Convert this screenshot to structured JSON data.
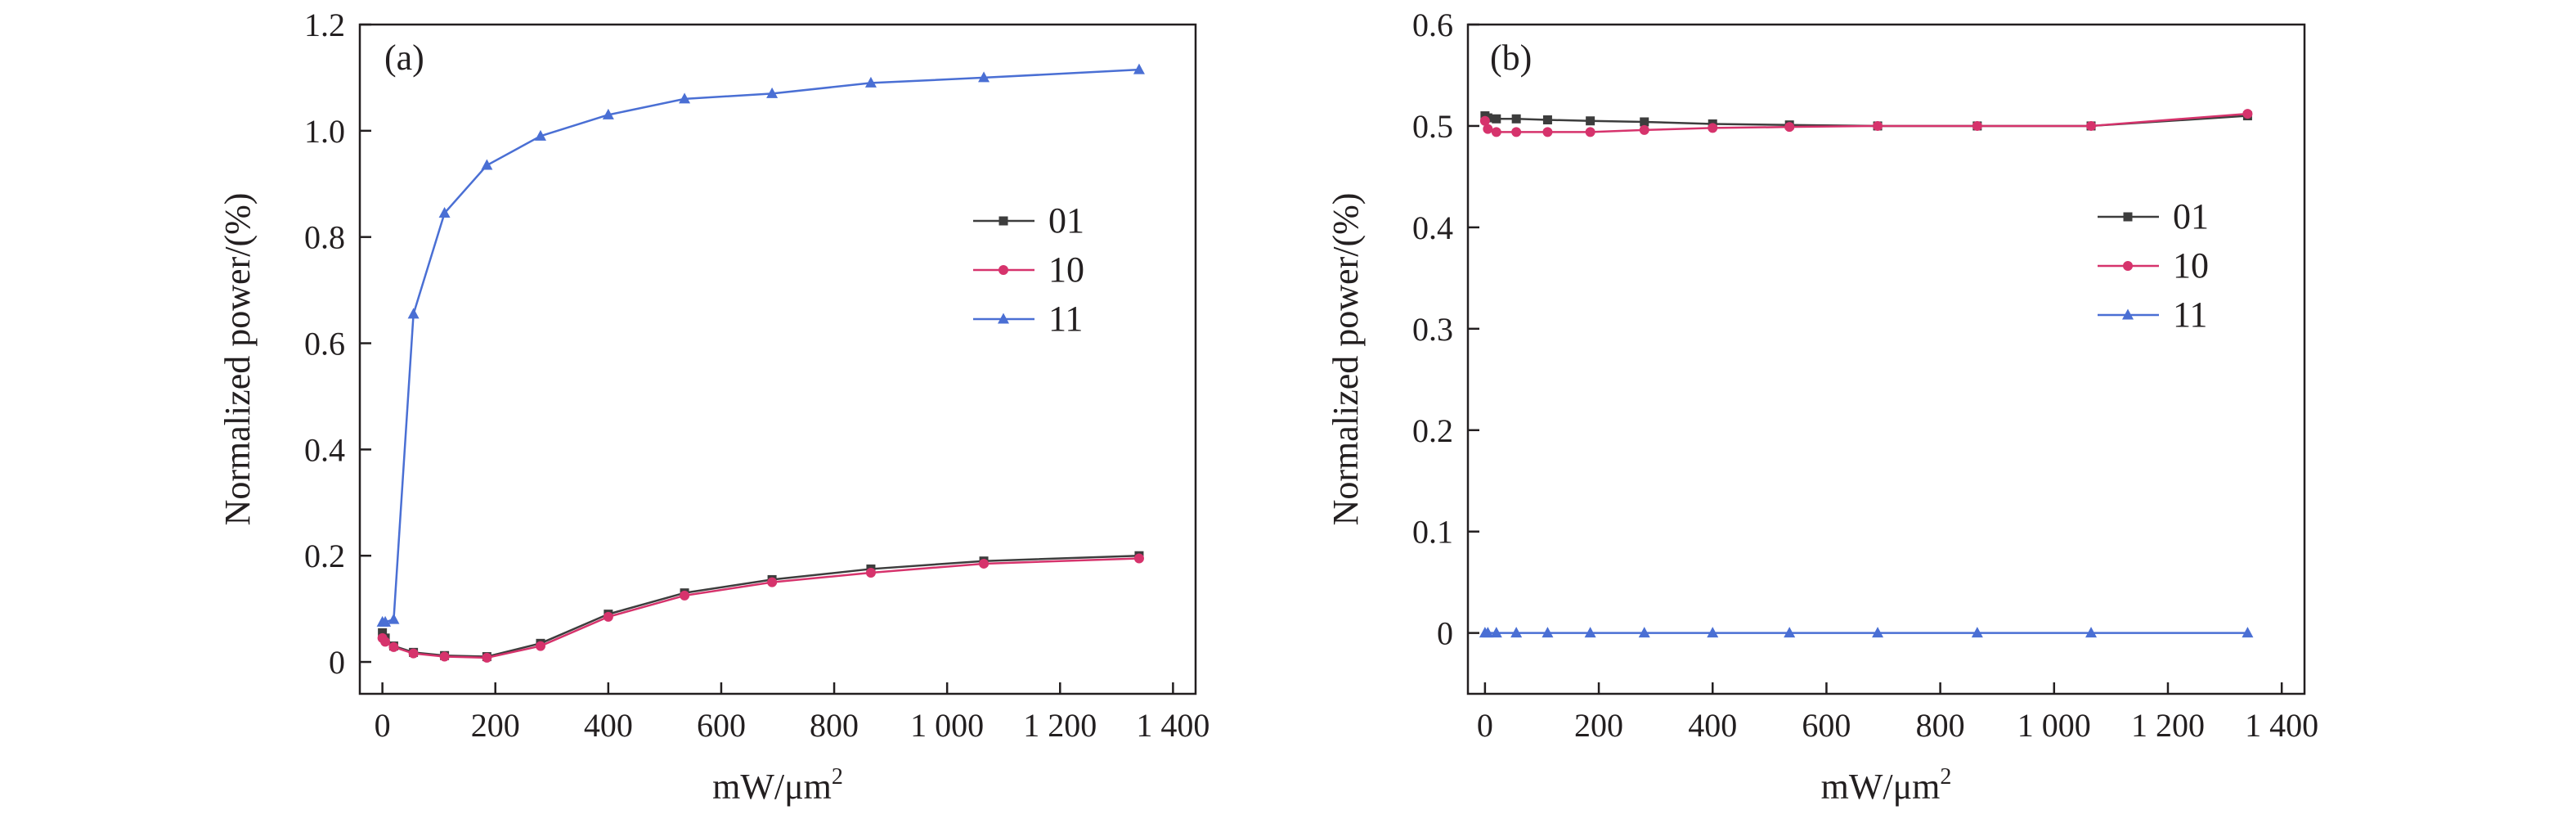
{
  "chart_data": [
    {
      "type": "line",
      "panel_label": "(a)",
      "xlabel": "mW/μm",
      "xlabel_sup": "2",
      "ylabel": "Normalized power/(%)",
      "xlim": [
        -40,
        1440
      ],
      "ylim": [
        -0.06,
        1.2
      ],
      "xticks": [
        0,
        200,
        400,
        600,
        800,
        1000,
        1200,
        1400
      ],
      "xtick_labels": [
        "0",
        "200",
        "400",
        "600",
        "800",
        "1 000",
        "1 200",
        "1 400"
      ],
      "yticks": [
        0,
        0.2,
        0.4,
        0.6,
        0.8,
        1.0,
        1.2
      ],
      "ytick_labels": [
        "0",
        "0.2",
        "0.4",
        "0.6",
        "0.8",
        "1.0",
        "1.2"
      ],
      "legend_position": "right-middle",
      "x": [
        0,
        5,
        20,
        55,
        110,
        185,
        280,
        400,
        535,
        690,
        865,
        1065,
        1340
      ],
      "series": [
        {
          "name": "01",
          "color": "#3d3d3d",
          "marker": "square",
          "values": [
            0.055,
            0.045,
            0.03,
            0.018,
            0.012,
            0.01,
            0.035,
            0.09,
            0.13,
            0.155,
            0.175,
            0.19,
            0.2
          ]
        },
        {
          "name": "10",
          "color": "#d6336c",
          "marker": "circle",
          "values": [
            0.045,
            0.038,
            0.028,
            0.016,
            0.01,
            0.008,
            0.03,
            0.085,
            0.125,
            0.15,
            0.168,
            0.185,
            0.195
          ]
        },
        {
          "name": "11",
          "color": "#4a6fd4",
          "marker": "triangle",
          "values": [
            0.075,
            0.075,
            0.08,
            0.655,
            0.845,
            0.935,
            0.99,
            1.03,
            1.06,
            1.07,
            1.09,
            1.1,
            1.115
          ]
        }
      ]
    },
    {
      "type": "line",
      "panel_label": "(b)",
      "xlabel": "mW/μm",
      "xlabel_sup": "2",
      "ylabel": "Normalized power/(%)",
      "xlim": [
        -30,
        1440
      ],
      "ylim": [
        -0.06,
        0.6
      ],
      "xticks": [
        0,
        200,
        400,
        600,
        800,
        1000,
        1200,
        1400
      ],
      "xtick_labels": [
        "0",
        "200",
        "400",
        "600",
        "800",
        "1 000",
        "1 200",
        "1 400"
      ],
      "yticks": [
        0,
        0.1,
        0.2,
        0.3,
        0.4,
        0.5,
        0.6
      ],
      "ytick_labels": [
        "0",
        "0.1",
        "0.2",
        "0.3",
        "0.4",
        "0.5",
        "0.6"
      ],
      "legend_position": "right-middle",
      "x": [
        0,
        5,
        20,
        55,
        110,
        185,
        280,
        400,
        535,
        690,
        865,
        1065,
        1340
      ],
      "series": [
        {
          "name": "01",
          "color": "#3d3d3d",
          "marker": "square",
          "values": [
            0.51,
            0.508,
            0.507,
            0.507,
            0.506,
            0.505,
            0.504,
            0.502,
            0.501,
            0.5,
            0.5,
            0.5,
            0.51
          ]
        },
        {
          "name": "10",
          "color": "#d6336c",
          "marker": "circle",
          "values": [
            0.505,
            0.497,
            0.494,
            0.494,
            0.494,
            0.494,
            0.496,
            0.498,
            0.499,
            0.5,
            0.5,
            0.5,
            0.512
          ]
        },
        {
          "name": "11",
          "color": "#4a6fd4",
          "marker": "triangle",
          "values": [
            0,
            0,
            0,
            0,
            0,
            0,
            0,
            0,
            0,
            0,
            0,
            0,
            0
          ]
        }
      ]
    }
  ]
}
